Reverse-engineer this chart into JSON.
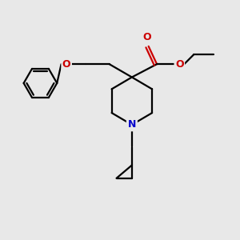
{
  "bg_color": "#e8e8e8",
  "line_color": "#000000",
  "N_color": "#0000cc",
  "O_color": "#cc0000",
  "line_width": 1.6,
  "figsize": [
    3.0,
    3.0
  ],
  "dpi": 100,
  "xlim": [
    0,
    10
  ],
  "ylim": [
    0,
    10
  ]
}
